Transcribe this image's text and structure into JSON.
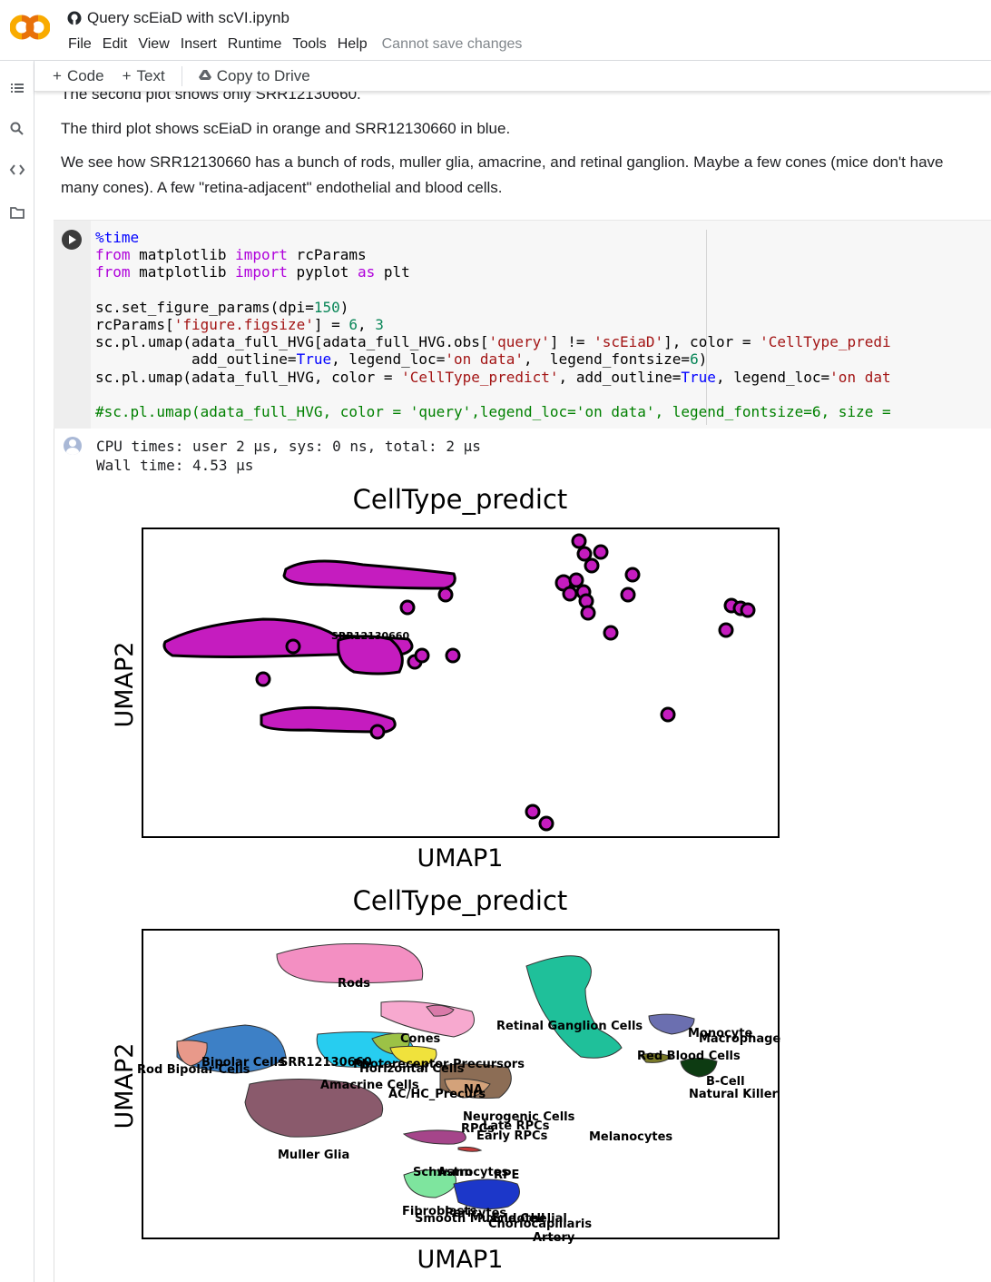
{
  "notebook": {
    "title": "Query scEiaD with scVI.ipynb"
  },
  "menu": {
    "items": [
      "File",
      "Edit",
      "View",
      "Insert",
      "Runtime",
      "Tools",
      "Help"
    ],
    "status": "Cannot save changes"
  },
  "toolbar": {
    "code_label": "Code",
    "text_label": "Text",
    "drive_label": "Copy to Drive"
  },
  "sidebar_icons": [
    "table-of-contents-icon",
    "search-icon",
    "code-snippets-icon",
    "files-icon"
  ],
  "markdown": {
    "line_partial": "The second plot shows only SRR12130660.",
    "line_third": "The third plot shows scEiaD in orange and SRR12130660 in blue.",
    "para1": "We see how SRR12130660 has a bunch of rods, muller glia, amacrine, and retinal ganglion. Maybe a few cones (mice don't have",
    "para2": "many cones). A few \"retina-adjacent\" endothelial and blood cells."
  },
  "output": {
    "line1": "CPU times: user 2 µs, sys: 0 ns, total: 2 µs",
    "line2": "Wall time: 4.53 µs"
  },
  "plots": [
    {
      "title": "CellType_predict",
      "xlabel": "UMAP1",
      "ylabel": "UMAP2",
      "labels": [
        "SRR12130660"
      ]
    },
    {
      "title": "CellType_predict",
      "xlabel": "UMAP1",
      "ylabel": "UMAP2",
      "labels": [
        "Rods",
        "Retinal Ganglion Cells",
        "Monocyte",
        "Macrophage",
        "Cones",
        "Red Blood Cells",
        "Bipolar Cells",
        "SRR12130660",
        "Photoreceptor Precursors",
        "Horizontal Cells",
        "Rod Bipolar Cells",
        "B-Cell",
        "Amacrine Cells",
        "NA",
        "Natural Killer",
        "AC/HC_Precurs",
        "Neurogenic Cells",
        "Late RPCs",
        "RPCs",
        "Early RPCs",
        "Melanocytes",
        "Muller Glia",
        "Schwann",
        "Astrocytes",
        "RPE",
        "Fibroblasts",
        "Pericytes",
        "Smooth Muscle Cell",
        "Choriocapillaris",
        "Endothelial",
        "Artery"
      ]
    }
  ],
  "colors": {
    "accent_orange": "#f9ab00",
    "marker_magenta": "#c51cbf"
  }
}
